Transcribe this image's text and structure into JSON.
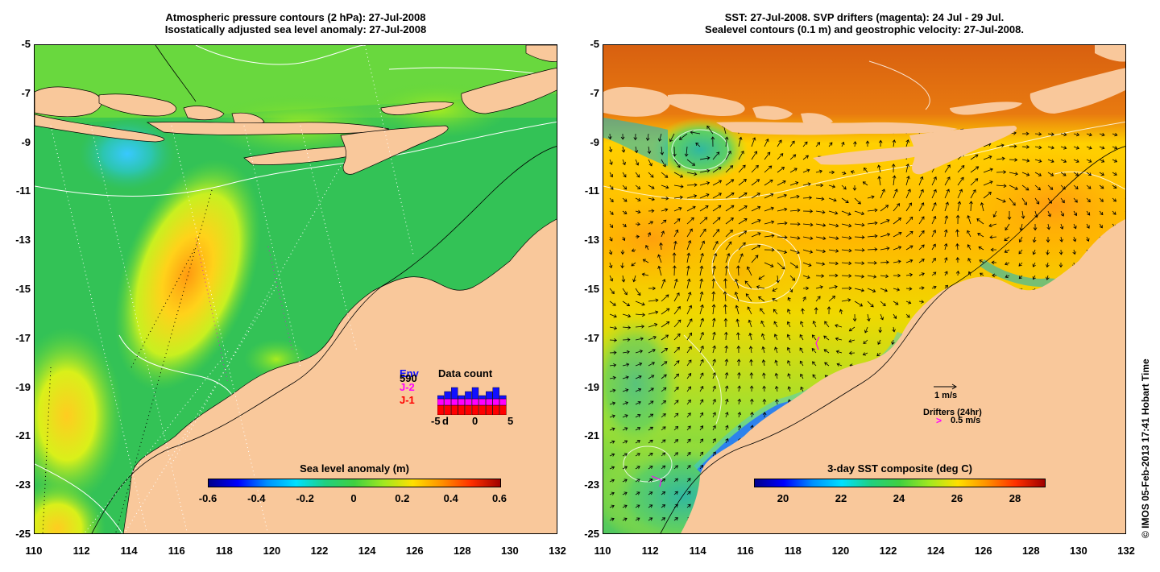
{
  "left_panel": {
    "title_line1": "Atmospheric pressure contours (2 hPa): 27-Jul-2008",
    "title_line2": "Isostatically adjusted sea level anomaly: 27-Jul-2008",
    "colorbar_label": "Sea level anomaly (m)",
    "colorbar_ticks": [
      "-0.6",
      "-0.4",
      "-0.2",
      "0",
      "0.2",
      "0.4",
      "0.6"
    ],
    "colorbar_values": [
      -0.6,
      -0.4,
      -0.2,
      0,
      0.2,
      0.4,
      0.6
    ],
    "inset": {
      "legend_env": "Env",
      "legend_env_count": "590",
      "legend_j2": "J-2",
      "legend_j1": "J-1",
      "title": "Data count",
      "axis_left": "-5",
      "axis_d": "d",
      "axis_mid": "0",
      "axis_right": "5",
      "series_colors": {
        "env": "#1010ff",
        "j2": "#ff00ff",
        "j1": "#ff0000"
      }
    }
  },
  "right_panel": {
    "title_line1": "SST: 27-Jul-2008. SVP drifters (magenta): 24 Jul - 29 Jul.",
    "title_line2": "Sealevel contours (0.1 m) and geostrophic velocity: 27-Jul-2008.",
    "scale_vector_label": "1 m/s",
    "drifters_label": "Drifters (24hr)",
    "drifters_scale": "0.5 m/s",
    "drifters_symbol": ">",
    "colorbar_label": "3-day SST composite (deg C)",
    "colorbar_ticks": [
      "20",
      "22",
      "24",
      "26",
      "28"
    ],
    "colorbar_values": [
      20,
      22,
      24,
      26,
      28
    ],
    "colorbar_range": [
      19,
      29
    ]
  },
  "axes": {
    "lat_ticks": [
      "-5",
      "-7",
      "-9",
      "-11",
      "-13",
      "-15",
      "-17",
      "-19",
      "-21",
      "-23",
      "-25"
    ],
    "lon_ticks": [
      "110",
      "112",
      "114",
      "116",
      "118",
      "120",
      "122",
      "124",
      "126",
      "128",
      "130",
      "132"
    ],
    "lat_range": [
      -25,
      -5
    ],
    "lon_range": [
      110,
      132
    ]
  },
  "credit": "© IMOS 05-Feb-2013 17:41 Hobart Time",
  "colors": {
    "land": "#f9c89b",
    "coast_outline": "#000000",
    "contours": "#ffffff",
    "drifter": "#ff00ff"
  }
}
